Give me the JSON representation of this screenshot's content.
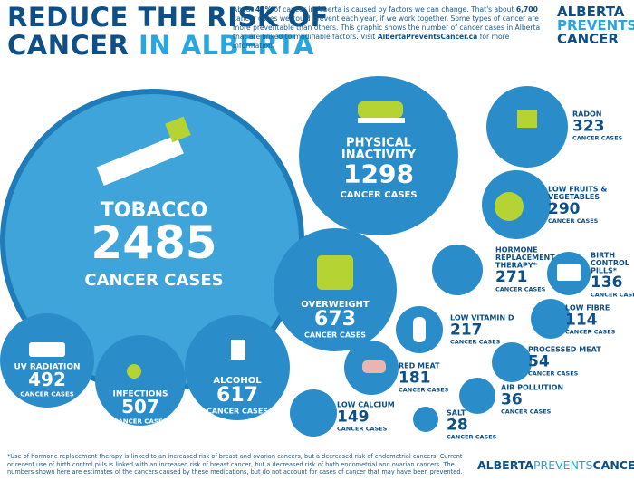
{
  "header": {
    "title_line1": "REDUCE THE RISK OF",
    "title_line2": [
      "CANCER",
      "IN ALBERTA"
    ],
    "intro": [
      "About ",
      "45%",
      " of cancer in Alberta is caused by factors we can change. That's about ",
      "6,700",
      " cancer cases we could prevent each year, if we work together. Some types of cancer are more preventable than others. This graphic shows the number of cancer cases in Alberta that are linked to modifiable factors. Visit ",
      "AlbertaPreventsCancer.ca",
      " for more information."
    ]
  },
  "logo": [
    "ALBERTA",
    "PREVENTS",
    "CANCER"
  ],
  "factors": [
    {
      "label": [
        "TOBACCO"
      ],
      "cases": 2485,
      "unit": "CANCER CASES"
    },
    {
      "label": [
        "PHYSICAL",
        "INACTIVITY"
      ],
      "cases": 1298,
      "unit": "CANCER CASES"
    },
    {
      "label": [
        "RADON"
      ],
      "cases": 323,
      "unit": "CANCER CASES"
    },
    {
      "label": [
        "LOW FRUITS &",
        "VEGETABLES"
      ],
      "cases": 290,
      "unit": "CANCER CASES"
    },
    {
      "label": [
        "HORMONE",
        "REPLACEMENT",
        "THERAPY*"
      ],
      "cases": 271,
      "unit": "CANCER CASES"
    },
    {
      "label": [
        "BIRTH",
        "CONTROL",
        "PILLS*"
      ],
      "cases": 136,
      "unit": "CANCER CASES"
    },
    {
      "label": [
        "OVERWEIGHT"
      ],
      "cases": 673,
      "unit": "CANCER CASES"
    },
    {
      "label": [
        "LOW VITAMIN D"
      ],
      "cases": 217,
      "unit": "CANCER CASES"
    },
    {
      "label": [
        "LOW FIBRE"
      ],
      "cases": 114,
      "unit": "CANCER CASES"
    },
    {
      "label": [
        "UV RADIATION"
      ],
      "cases": 492,
      "unit": "CANCER CASES"
    },
    {
      "label": [
        "INFECTIONS"
      ],
      "cases": 507,
      "unit": "CANCER CASES"
    },
    {
      "label": [
        "ALCOHOL"
      ],
      "cases": 617,
      "unit": "CANCER CASES"
    },
    {
      "label": [
        "RED MEAT"
      ],
      "cases": 181,
      "unit": "CANCER CASES"
    },
    {
      "label": [
        "PROCESSED MEAT"
      ],
      "cases": 54,
      "unit": "CANCER CASES"
    },
    {
      "label": [
        "LOW CALCIUM"
      ],
      "cases": 149,
      "unit": "CANCER CASES"
    },
    {
      "label": [
        "AIR POLLUTION"
      ],
      "cases": 36,
      "unit": "CANCER CASES"
    },
    {
      "label": [
        "SALT"
      ],
      "cases": 28,
      "unit": "CANCER CASES"
    }
  ],
  "footnote": "*Use of hormone replacement therapy is linked to an increased risk of breast and ovarian cancers, but a decreased risk of endometrial cancers. Current or recent use of birth control pills is linked with an increased risk of breast cancer, but a decreased risk of both endometrial and ovarian cancers. The numbers shown here are estimates of the cancers caused by these medications, but do not account for cases of cancer that may have been prevented.",
  "footer_url": [
    "ALBERTA",
    "PREVENTS",
    "CANCER.CA"
  ]
}
